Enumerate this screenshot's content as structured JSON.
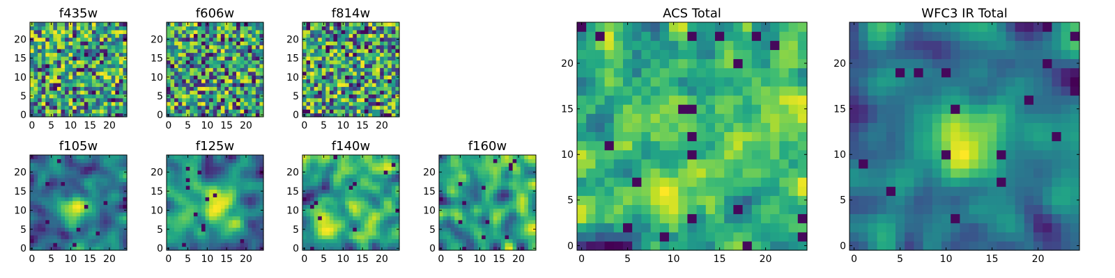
{
  "chart_data": [
    {
      "type": "heatmap",
      "title": "f435w",
      "x_ticks": [
        0,
        5,
        10,
        15,
        20
      ],
      "y_ticks": [
        0,
        5,
        10,
        15,
        20
      ],
      "xlim": [
        -0.5,
        24.5
      ],
      "ylim": [
        -0.5,
        24.5
      ],
      "grid": false,
      "colormap": "viridis",
      "nx": 25,
      "ny": 25,
      "seed": 11,
      "smooth": 0,
      "bias": 0.62
    },
    {
      "type": "heatmap",
      "title": "f606w",
      "x_ticks": [
        0,
        5,
        10,
        15,
        20
      ],
      "y_ticks": [
        0,
        5,
        10,
        15,
        20
      ],
      "xlim": [
        -0.5,
        24.5
      ],
      "ylim": [
        -0.5,
        24.5
      ],
      "grid": false,
      "colormap": "viridis",
      "nx": 25,
      "ny": 25,
      "seed": 23,
      "smooth": 0,
      "bias": 0.62
    },
    {
      "type": "heatmap",
      "title": "f814w",
      "x_ticks": [
        0,
        5,
        10,
        15,
        20
      ],
      "y_ticks": [
        0,
        5,
        10,
        15,
        20
      ],
      "xlim": [
        -0.5,
        24.5
      ],
      "ylim": [
        -0.5,
        24.5
      ],
      "grid": false,
      "colormap": "viridis",
      "nx": 25,
      "ny": 25,
      "seed": 37,
      "smooth": 0,
      "bias": 0.64
    },
    {
      "type": "heatmap",
      "title": "f105w",
      "x_ticks": [
        0,
        5,
        10,
        15,
        20
      ],
      "y_ticks": [
        0,
        5,
        10,
        15,
        20
      ],
      "xlim": [
        -0.5,
        24.5
      ],
      "ylim": [
        -0.5,
        24.5
      ],
      "grid": false,
      "colormap": "viridis",
      "nx": 25,
      "ny": 25,
      "seed": 41,
      "smooth": 2,
      "bias": 0.6,
      "peak": [
        12,
        10
      ]
    },
    {
      "type": "heatmap",
      "title": "f125w",
      "x_ticks": [
        0,
        5,
        10,
        15,
        20
      ],
      "y_ticks": [
        0,
        5,
        10,
        15,
        20
      ],
      "xlim": [
        -0.5,
        24.5
      ],
      "ylim": [
        -0.5,
        24.5
      ],
      "grid": false,
      "colormap": "viridis",
      "nx": 25,
      "ny": 25,
      "seed": 53,
      "smooth": 2,
      "bias": 0.6,
      "peak": [
        13,
        11
      ]
    },
    {
      "type": "heatmap",
      "title": "f140w",
      "x_ticks": [
        0,
        5,
        10,
        15,
        20
      ],
      "y_ticks": [
        0,
        5,
        10,
        15,
        20
      ],
      "xlim": [
        -0.5,
        24.5
      ],
      "ylim": [
        -0.5,
        24.5
      ],
      "grid": false,
      "colormap": "viridis",
      "nx": 25,
      "ny": 25,
      "seed": 67,
      "smooth": 2,
      "bias": 0.6
    },
    {
      "type": "heatmap",
      "title": "f160w",
      "x_ticks": [
        0,
        5,
        10,
        15,
        20
      ],
      "y_ticks": [
        0,
        5,
        10,
        15,
        20
      ],
      "xlim": [
        -0.5,
        24.5
      ],
      "ylim": [
        -0.5,
        24.5
      ],
      "grid": false,
      "colormap": "viridis",
      "nx": 25,
      "ny": 25,
      "seed": 79,
      "smooth": 2,
      "bias": 0.6
    },
    {
      "type": "heatmap",
      "title": "ACS Total",
      "x_ticks": [
        0,
        5,
        10,
        15,
        20
      ],
      "y_ticks": [
        0,
        5,
        10,
        15,
        20
      ],
      "xlim": [
        -0.5,
        24.5
      ],
      "ylim": [
        -0.5,
        24.5
      ],
      "grid": false,
      "colormap": "viridis",
      "nx": 25,
      "ny": 25,
      "seed": 97,
      "smooth": 1,
      "bias": 0.66
    },
    {
      "type": "heatmap",
      "title": "WFC3 IR Total",
      "x_ticks": [
        0,
        5,
        10,
        15,
        20
      ],
      "y_ticks": [
        0,
        5,
        10,
        15,
        20
      ],
      "xlim": [
        -0.5,
        24.5
      ],
      "ylim": [
        -0.5,
        24.5
      ],
      "grid": false,
      "colormap": "viridis",
      "nx": 25,
      "ny": 25,
      "seed": 113,
      "smooth": 2,
      "bias": 0.56,
      "peak": [
        12,
        11
      ]
    }
  ]
}
